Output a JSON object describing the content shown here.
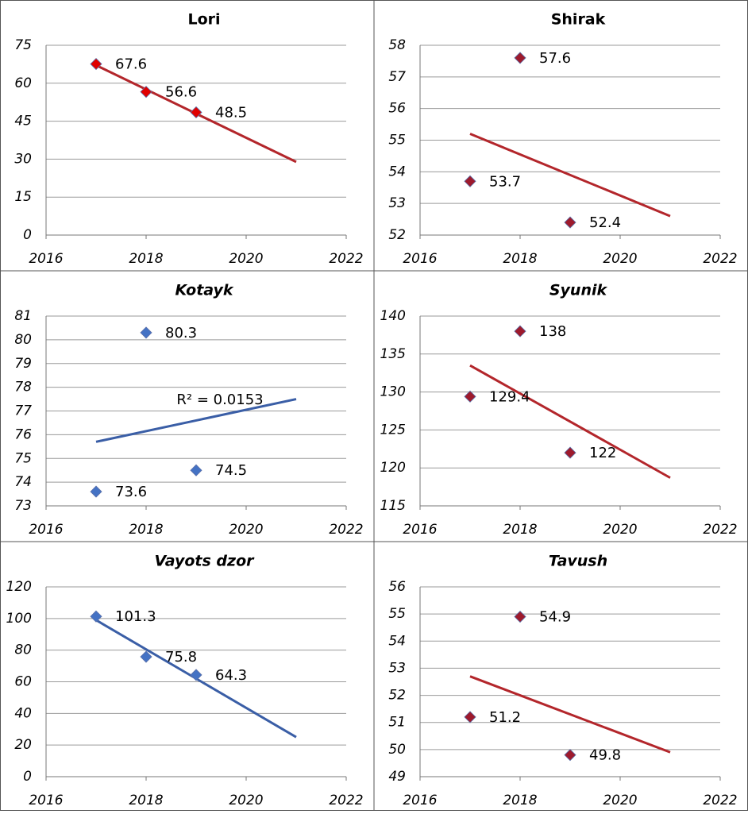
{
  "chart_data": [
    {
      "type": "scatter",
      "title": "Lori",
      "x": [
        2017,
        2018,
        2019
      ],
      "values": [
        67.6,
        56.6,
        48.5
      ],
      "color": "#e00000",
      "trendline": {
        "x": [
          2017,
          2021
        ],
        "values": [
          67.1,
          28.9
        ],
        "color": "#b3262b"
      },
      "xlim": [
        2016,
        2022
      ],
      "xticks": [
        2016,
        2018,
        2020,
        2022
      ],
      "ylim": [
        0,
        75
      ],
      "yticks": [
        0,
        15,
        30,
        45,
        60,
        75
      ],
      "grid": true
    },
    {
      "type": "scatter",
      "title": "Shirak",
      "x": [
        2017,
        2018,
        2019
      ],
      "values": [
        53.7,
        57.6,
        52.4
      ],
      "color": "#9e1a2c",
      "trendline": {
        "x": [
          2017,
          2021
        ],
        "values": [
          55.2,
          52.6
        ],
        "color": "#b3262b"
      },
      "xlim": [
        2016,
        2022
      ],
      "xticks": [
        2016,
        2018,
        2020,
        2022
      ],
      "ylim": [
        52,
        58
      ],
      "yticks": [
        52,
        53,
        54,
        55,
        56,
        57,
        58
      ],
      "grid": true
    },
    {
      "type": "scatter",
      "title": "Kotayk",
      "x": [
        2017,
        2018,
        2019
      ],
      "values": [
        73.6,
        80.3,
        74.5
      ],
      "color": "#4472c4",
      "trendline": {
        "x": [
          2017,
          2021
        ],
        "values": [
          75.7,
          77.5
        ],
        "color": "#3a5ea6"
      },
      "annotation": "R² = 0.0153",
      "xlim": [
        2016,
        2022
      ],
      "xticks": [
        2016,
        2018,
        2020,
        2022
      ],
      "ylim": [
        73,
        81
      ],
      "yticks": [
        73,
        74,
        75,
        76,
        77,
        78,
        79,
        80,
        81
      ],
      "grid": true
    },
    {
      "type": "scatter",
      "title": "Syunik",
      "x": [
        2017,
        2018,
        2019
      ],
      "values": [
        129.4,
        138,
        122
      ],
      "color": "#9e1a2c",
      "trendline": {
        "x": [
          2017,
          2021
        ],
        "values": [
          133.5,
          118.7
        ],
        "color": "#b3262b"
      },
      "xlim": [
        2016,
        2022
      ],
      "xticks": [
        2016,
        2018,
        2020,
        2022
      ],
      "ylim": [
        115,
        140
      ],
      "yticks": [
        115,
        120,
        125,
        130,
        135,
        140
      ],
      "grid": true
    },
    {
      "type": "scatter",
      "title": "Vayots dzor",
      "x": [
        2017,
        2018,
        2019
      ],
      "values": [
        101.3,
        75.8,
        64.3
      ],
      "color": "#4472c4",
      "trendline": {
        "x": [
          2017,
          2021
        ],
        "values": [
          99.0,
          25.0
        ],
        "color": "#3a5ea6"
      },
      "xlim": [
        2016,
        2022
      ],
      "xticks": [
        2016,
        2018,
        2020,
        2022
      ],
      "ylim": [
        0,
        120
      ],
      "yticks": [
        0,
        20,
        40,
        60,
        80,
        100,
        120
      ],
      "grid": true
    },
    {
      "type": "scatter",
      "title": "Tavush",
      "x": [
        2017,
        2018,
        2019
      ],
      "values": [
        51.2,
        54.9,
        49.8
      ],
      "color": "#9e1a2c",
      "trendline": {
        "x": [
          2017,
          2021
        ],
        "values": [
          52.7,
          49.9
        ],
        "color": "#b3262b"
      },
      "xlim": [
        2016,
        2022
      ],
      "xticks": [
        2016,
        2018,
        2020,
        2022
      ],
      "ylim": [
        49,
        56
      ],
      "yticks": [
        49,
        50,
        51,
        52,
        53,
        54,
        55,
        56
      ],
      "grid": true
    }
  ]
}
